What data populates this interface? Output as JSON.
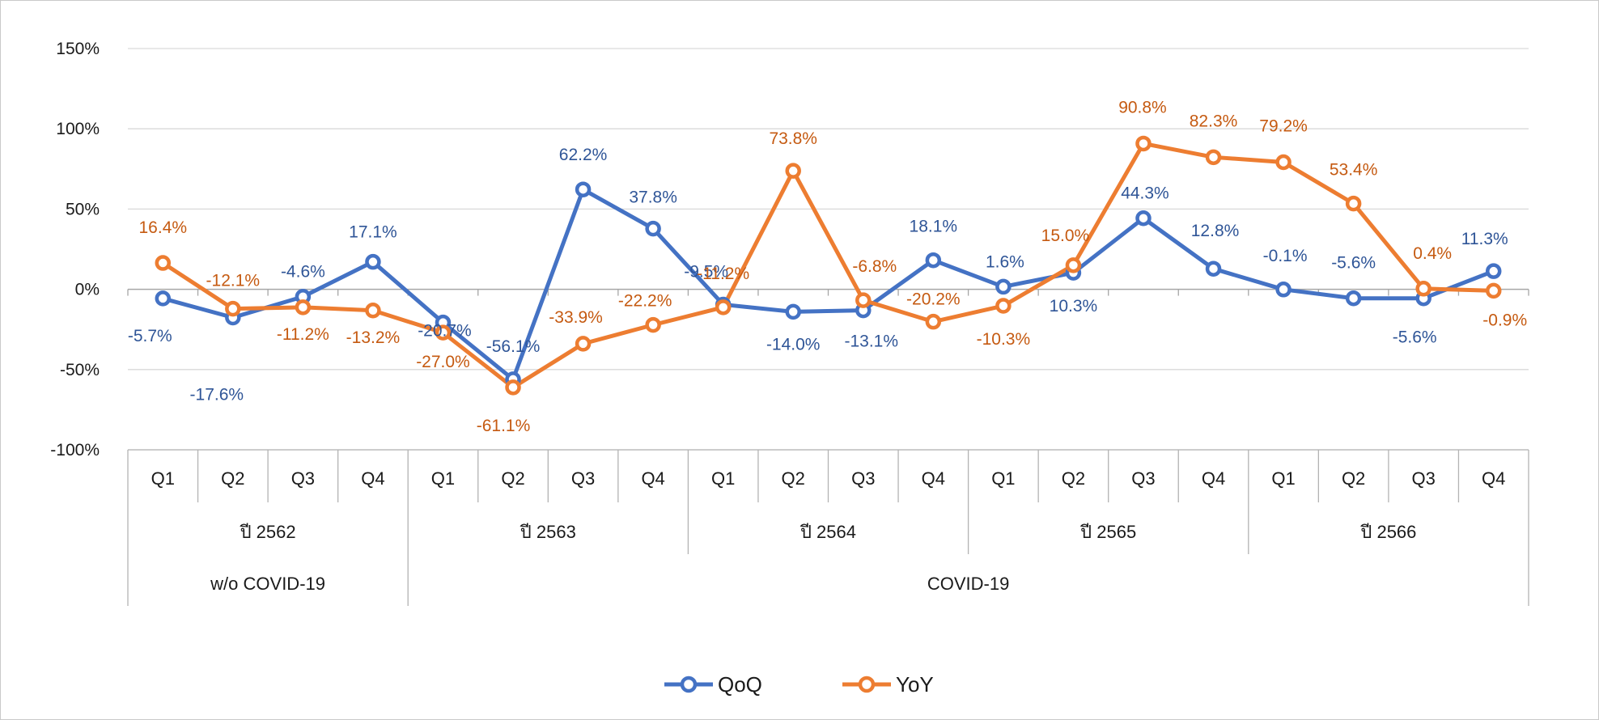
{
  "chart_data": {
    "type": "line",
    "title": "",
    "xlabel": "",
    "ylabel": "",
    "ylim": [
      -100,
      150
    ],
    "yticks": [
      150,
      100,
      50,
      0,
      -50,
      -100
    ],
    "ytick_labels": [
      "150%",
      "100%",
      "50%",
      "0%",
      "-50%",
      "-100%"
    ],
    "grid": true,
    "legend_position": "bottom-center",
    "categories": [
      "Q1",
      "Q2",
      "Q3",
      "Q4",
      "Q1",
      "Q2",
      "Q3",
      "Q4",
      "Q1",
      "Q2",
      "Q3",
      "Q4",
      "Q1",
      "Q2",
      "Q3",
      "Q4",
      "Q1",
      "Q2",
      "Q3",
      "Q4"
    ],
    "category_groups": [
      {
        "label": "ปี 2562",
        "count": 4
      },
      {
        "label": "ปี 2563",
        "count": 4
      },
      {
        "label": "ปี 2564",
        "count": 4
      },
      {
        "label": "ปี 2565",
        "count": 4
      },
      {
        "label": "ปี 2566",
        "count": 4
      }
    ],
    "period_groups": [
      {
        "label": "w/o COVID-19",
        "count": 4
      },
      {
        "label": "COVID-19",
        "count": 16
      }
    ],
    "series": [
      {
        "name": "QoQ",
        "color": "#4472C4",
        "label_color": "#2F5597",
        "values": [
          -5.7,
          -17.6,
          -4.6,
          17.1,
          -20.7,
          -56.1,
          62.2,
          37.8,
          -9.5,
          -14.0,
          -13.1,
          18.1,
          1.6,
          10.3,
          44.3,
          12.8,
          -0.1,
          -5.6,
          -5.6,
          11.3
        ],
        "labels": [
          "-5.7%",
          "-17.6%",
          "-4.6%",
          "17.1%",
          "-20.7%",
          "-56.1%",
          "62.2%",
          "37.8%",
          "-9.5%",
          "-14.0%",
          "-13.1%",
          "18.1%",
          "1.6%",
          "10.3%",
          "44.3%",
          "12.8%",
          "-0.1%",
          "-5.6%",
          "-5.6%",
          "11.3%"
        ]
      },
      {
        "name": "YoY",
        "color": "#ED7D31",
        "label_color": "#C55A11",
        "values": [
          16.4,
          -12.1,
          -11.2,
          -13.2,
          -27.0,
          -61.1,
          -33.9,
          -22.2,
          -11.2,
          73.8,
          -6.8,
          -20.2,
          -10.3,
          15.0,
          90.8,
          82.3,
          79.2,
          53.4,
          0.4,
          -0.9
        ],
        "labels": [
          "16.4%",
          "-12.1%",
          "-11.2%",
          "-13.2%",
          "-27.0%",
          "-61.1%",
          "-33.9%",
          "-22.2%",
          "-11.2%",
          "73.8%",
          "-6.8%",
          "-20.2%",
          "-10.3%",
          "15.0%",
          "90.8%",
          "82.3%",
          "79.2%",
          "53.4%",
          "0.4%",
          "-0.9%"
        ]
      }
    ]
  }
}
